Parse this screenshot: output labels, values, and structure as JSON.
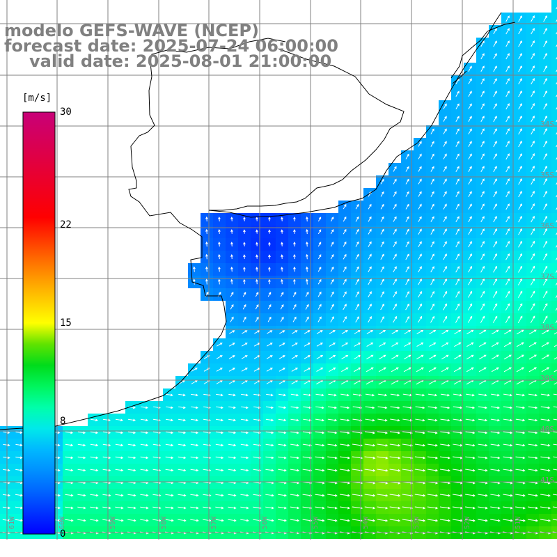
{
  "titles": {
    "line1": "modelo GEFS-WAVE (NCEP)",
    "line2": "forecast date: 2025-07-24 06:00:00",
    "line3": "valid date: 2025-08-01 21:00:00"
  },
  "colorbar": {
    "unit": "[m/s]",
    "ticks": [
      "30",
      "22",
      "15",
      "8",
      "0"
    ],
    "tick_values": [
      30,
      22,
      15,
      8,
      0
    ],
    "min": 0,
    "max": 30,
    "colors": [
      "#0000ff",
      "#00aaff",
      "#00ffff",
      "#00ff40",
      "#00cc00",
      "#ffff00",
      "#ff8000",
      "#ff0000",
      "#cc0066",
      "#cc0099"
    ]
  },
  "grid": {
    "lat_labels": [
      "34S",
      "35S",
      "36S",
      "37S",
      "38S",
      "39S",
      "40S",
      "41S"
    ],
    "lon_labels": [
      "61W",
      "60W",
      "59W",
      "58W",
      "57W",
      "56W",
      "55W",
      "54W",
      "53W",
      "52W",
      "51W"
    ]
  },
  "colors": {
    "land": "#ffffff",
    "coast": "#000000",
    "grid_line": "#808080",
    "title": "#808080",
    "arrow": "#ffffff"
  }
}
